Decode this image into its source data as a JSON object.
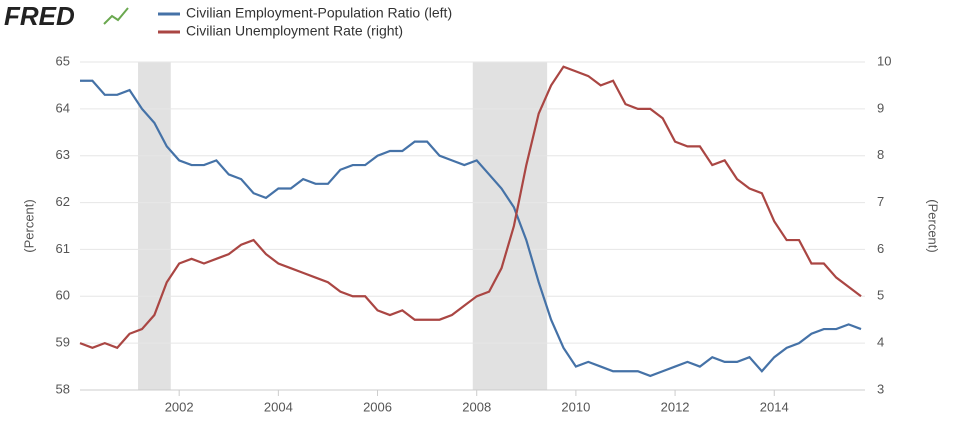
{
  "logo": "FRED",
  "chart_data": {
    "type": "line",
    "x": [
      2000.0,
      2000.25,
      2000.5,
      2000.75,
      2001.0,
      2001.25,
      2001.5,
      2001.75,
      2002.0,
      2002.25,
      2002.5,
      2002.75,
      2003.0,
      2003.25,
      2003.5,
      2003.75,
      2004.0,
      2004.25,
      2004.5,
      2004.75,
      2005.0,
      2005.25,
      2005.5,
      2005.75,
      2006.0,
      2006.25,
      2006.5,
      2006.75,
      2007.0,
      2007.25,
      2007.5,
      2007.75,
      2008.0,
      2008.25,
      2008.5,
      2008.75,
      2009.0,
      2009.25,
      2009.5,
      2009.75,
      2010.0,
      2010.25,
      2010.5,
      2010.75,
      2011.0,
      2011.25,
      2011.5,
      2011.75,
      2012.0,
      2012.25,
      2012.5,
      2012.75,
      2013.0,
      2013.25,
      2013.5,
      2013.75,
      2014.0,
      2014.25,
      2014.5,
      2014.75,
      2015.0,
      2015.25,
      2015.5,
      2015.75
    ],
    "series": [
      {
        "name": "Civilian Employment-Population Ratio (left)",
        "color": "#4572a7",
        "axis": "y",
        "values": [
          64.6,
          64.6,
          64.3,
          64.3,
          64.4,
          64.0,
          63.7,
          63.2,
          62.9,
          62.8,
          62.8,
          62.9,
          62.6,
          62.5,
          62.2,
          62.1,
          62.3,
          62.3,
          62.5,
          62.4,
          62.4,
          62.7,
          62.8,
          62.8,
          63.0,
          63.1,
          63.1,
          63.3,
          63.3,
          63.0,
          62.9,
          62.8,
          62.9,
          62.6,
          62.3,
          61.9,
          61.2,
          60.3,
          59.5,
          58.9,
          58.5,
          58.6,
          58.5,
          58.4,
          58.4,
          58.4,
          58.3,
          58.4,
          58.5,
          58.6,
          58.5,
          58.7,
          58.6,
          58.6,
          58.7,
          58.4,
          58.7,
          58.9,
          59.0,
          59.2,
          59.3,
          59.3,
          59.4,
          59.3
        ]
      },
      {
        "name": "Civilian Unemployment Rate (right)",
        "color": "#aa4643",
        "axis": "y2",
        "values": [
          4.0,
          3.9,
          4.0,
          3.9,
          4.2,
          4.3,
          4.6,
          5.3,
          5.7,
          5.8,
          5.7,
          5.8,
          5.9,
          6.1,
          6.2,
          5.9,
          5.7,
          5.6,
          5.5,
          5.4,
          5.3,
          5.1,
          5.0,
          5.0,
          4.7,
          4.6,
          4.7,
          4.5,
          4.5,
          4.5,
          4.6,
          4.8,
          5.0,
          5.1,
          5.6,
          6.5,
          7.8,
          8.9,
          9.5,
          9.9,
          9.8,
          9.7,
          9.5,
          9.6,
          9.1,
          9.0,
          9.0,
          8.8,
          8.3,
          8.2,
          8.2,
          7.8,
          7.9,
          7.5,
          7.3,
          7.2,
          6.6,
          6.2,
          6.2,
          5.7,
          5.7,
          5.4,
          5.2,
          5.0
        ]
      }
    ],
    "recessions": [
      [
        2001.17,
        2001.83
      ],
      [
        2007.92,
        2009.42
      ]
    ],
    "recession_color": "#e1e1e1",
    "xlim": [
      2000.0,
      2015.83
    ],
    "xticks": [
      2002,
      2004,
      2006,
      2008,
      2010,
      2012,
      2014
    ],
    "ylim": [
      58,
      65
    ],
    "yticks": [
      58,
      59,
      60,
      61,
      62,
      63,
      64,
      65
    ],
    "y2lim": [
      3,
      10
    ],
    "y2ticks": [
      3,
      4,
      5,
      6,
      7,
      8,
      9,
      10
    ],
    "ylabel": "(Percent)",
    "y2label": "(Percent)",
    "grid": true
  }
}
